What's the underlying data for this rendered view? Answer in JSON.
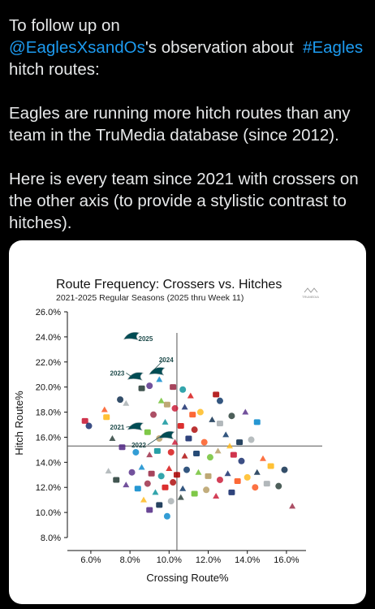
{
  "tweet": {
    "line1_prefix": "To follow up on ",
    "mention": "@EaglesXsandOs",
    "line1_suffix": "'s observation about  ",
    "hashtag": "#Eagles",
    "line1_end": " hitch routes:",
    "para2": "Eagles are running more hitch routes than any team in the TruMedia database (since 2012).",
    "para3": "Here is every team since 2021 with crossers on the other axis (to provide a stylistic contrast to hitches)."
  },
  "chart_data": {
    "type": "scatter",
    "title": "Route Frequency: Crossers vs. Hitches",
    "subtitle": "2021-2025 Regular Seasons (2025 thru Week 11)",
    "xlabel": "Crossing Route%",
    "ylabel": "Hitch Route%",
    "xlim": [
      4.8,
      17.0
    ],
    "ylim": [
      8.0,
      26.0
    ],
    "x_ticks": [
      "6.0%",
      "8.0%",
      "10.0%",
      "12.0%",
      "14.0%",
      "16.0%"
    ],
    "x_tick_values": [
      6,
      8,
      10,
      12,
      14,
      16
    ],
    "y_ticks": [
      "8.0%",
      "10.0%",
      "12.0%",
      "14.0%",
      "16.0%",
      "18.0%",
      "20.0%",
      "22.0%",
      "24.0%",
      "26.0%"
    ],
    "y_tick_values": [
      8,
      10,
      12,
      14,
      16,
      18,
      20,
      22,
      24,
      26
    ],
    "grid": false,
    "reference_lines": {
      "x": 10.4,
      "y": 15.3
    },
    "highlighted": [
      {
        "label": "2025",
        "x": 8.1,
        "y": 24.0
      },
      {
        "label": "2024",
        "x": 9.4,
        "y": 21.2
      },
      {
        "label": "2023",
        "x": 8.3,
        "y": 20.8
      },
      {
        "label": "2021",
        "x": 8.3,
        "y": 16.8
      },
      {
        "label": "2022",
        "x": 9.9,
        "y": 16.1
      }
    ],
    "team_points": [
      [
        5.7,
        17.3
      ],
      [
        5.9,
        16.9
      ],
      [
        6.7,
        18.2
      ],
      [
        6.8,
        17.6
      ],
      [
        7.5,
        19.0
      ],
      [
        7.8,
        18.7
      ],
      [
        8.6,
        19.9
      ],
      [
        9.0,
        20.1
      ],
      [
        9.5,
        20.6
      ],
      [
        10.2,
        20.0
      ],
      [
        10.7,
        19.8
      ],
      [
        11.1,
        19.3
      ],
      [
        12.4,
        19.4
      ],
      [
        12.6,
        18.9
      ],
      [
        9.6,
        18.9
      ],
      [
        9.9,
        18.6
      ],
      [
        10.3,
        18.3
      ],
      [
        10.8,
        18.4
      ],
      [
        11.2,
        17.8
      ],
      [
        11.6,
        18.0
      ],
      [
        12.2,
        17.4
      ],
      [
        12.6,
        17.1
      ],
      [
        13.2,
        17.7
      ],
      [
        13.9,
        18.0
      ],
      [
        14.5,
        17.2
      ],
      [
        9.2,
        17.8
      ],
      [
        9.8,
        17.2
      ],
      [
        10.6,
        16.9
      ],
      [
        11.3,
        16.6
      ],
      [
        12.9,
        16.2
      ],
      [
        8.9,
        16.4
      ],
      [
        9.5,
        15.9
      ],
      [
        10.3,
        15.6
      ],
      [
        11.0,
        15.9
      ],
      [
        11.8,
        15.6
      ],
      [
        13.1,
        15.3
      ],
      [
        13.6,
        15.6
      ],
      [
        14.2,
        15.8
      ],
      [
        7.1,
        15.9
      ],
      [
        7.6,
        15.2
      ],
      [
        8.3,
        14.8
      ],
      [
        9.0,
        14.6
      ],
      [
        9.4,
        14.9
      ],
      [
        10.1,
        14.8
      ],
      [
        10.8,
        14.5
      ],
      [
        11.4,
        14.7
      ],
      [
        12.1,
        14.4
      ],
      [
        12.5,
        14.9
      ],
      [
        13.3,
        14.6
      ],
      [
        13.7,
        14.1
      ],
      [
        14.8,
        14.3
      ],
      [
        15.2,
        13.7
      ],
      [
        15.9,
        13.4
      ],
      [
        6.9,
        13.3
      ],
      [
        7.3,
        12.6
      ],
      [
        8.1,
        13.2
      ],
      [
        8.6,
        13.6
      ],
      [
        9.1,
        13.1
      ],
      [
        9.6,
        12.9
      ],
      [
        10.0,
        13.5
      ],
      [
        10.4,
        13.0
      ],
      [
        10.9,
        13.4
      ],
      [
        11.5,
        13.2
      ],
      [
        12.0,
        12.9
      ],
      [
        12.6,
        12.6
      ],
      [
        13.0,
        13.1
      ],
      [
        13.5,
        12.5
      ],
      [
        14.0,
        12.8
      ],
      [
        14.5,
        13.2
      ],
      [
        15.0,
        12.3
      ],
      [
        15.6,
        12.1
      ],
      [
        7.8,
        12.2
      ],
      [
        8.4,
        11.9
      ],
      [
        8.9,
        12.3
      ],
      [
        9.3,
        11.6
      ],
      [
        9.8,
        12.0
      ],
      [
        10.2,
        12.4
      ],
      [
        10.7,
        11.9
      ],
      [
        11.3,
        11.5
      ],
      [
        11.9,
        11.8
      ],
      [
        12.4,
        11.3
      ],
      [
        13.2,
        11.6
      ],
      [
        14.4,
        12.0
      ],
      [
        8.7,
        11.0
      ],
      [
        9.5,
        10.6
      ],
      [
        10.1,
        10.9
      ],
      [
        10.6,
        11.2
      ],
      [
        9.0,
        10.2
      ],
      [
        9.9,
        9.7
      ],
      [
        16.3,
        10.5
      ]
    ]
  }
}
